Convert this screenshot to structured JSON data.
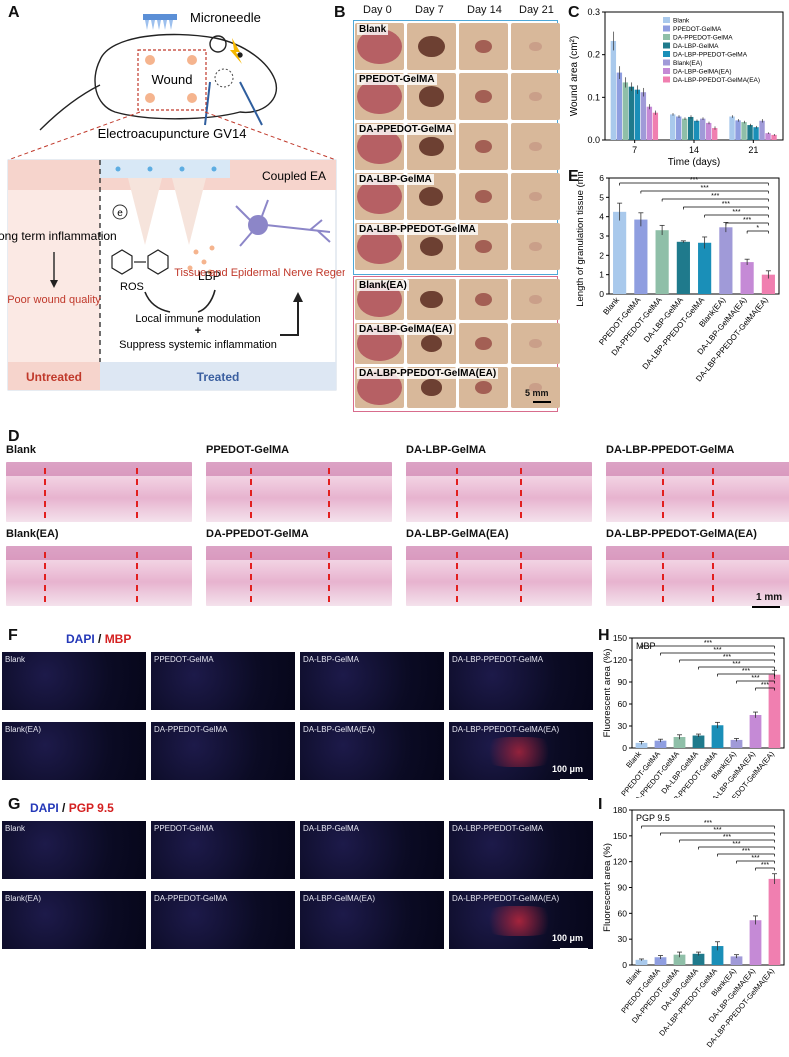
{
  "panels": {
    "a": "A",
    "b": "B",
    "c": "C",
    "d": "D",
    "e": "E",
    "f": "F",
    "g": "G",
    "h": "H",
    "i": "I"
  },
  "schematic": {
    "microneedle": "Microneedle",
    "wound": "Wound",
    "ea_title": "Electroacupuncture GV14",
    "coupled": "Coupled EA",
    "electron": "e",
    "ros": "ROS",
    "lbp": "LBP",
    "long_term": "Long term inflammation",
    "poor": "Poor wound quality",
    "local": "Local immune modulation",
    "plus": "+",
    "suppress": "Suppress systemic inflammation",
    "regen": "Tissue and Epidermal Nerve Regeneration",
    "untreated": "Untreated",
    "treated": "Treated",
    "colors": {
      "pink_band": "#f6d4cc",
      "blue_band": "#dde7f3",
      "red_text": "#c0392b",
      "blue_text": "#3a5fa0"
    }
  },
  "photos": {
    "days": [
      "Day 0",
      "Day 7",
      "Day 14",
      "Day 21"
    ],
    "groups_top": [
      "Blank",
      "PPEDOT-GelMA",
      "DA-PPEDOT-GelMA",
      "DA-LBP-GelMA",
      "DA-LBP-PPEDOT-GelMA"
    ],
    "groups_bottom": [
      "Blank(EA)",
      "DA-LBP-GelMA(EA)",
      "DA-LBP-PPEDOT-GelMA(EA)"
    ],
    "scale": "5 mm"
  },
  "histo": {
    "row1": [
      "Blank",
      "PPEDOT-GelMA",
      "DA-LBP-GelMA",
      "DA-LBP-PPEDOT-GelMA"
    ],
    "row2": [
      "Blank(EA)",
      "DA-PPEDOT-GelMA",
      "DA-LBP-GelMA(EA)",
      "DA-LBP-PPEDOT-GelMA(EA)"
    ],
    "scale": "1 mm"
  },
  "if_mbp": {
    "title_dapi": "DAPI",
    "title_sep": " / ",
    "title_marker": "MBP",
    "row1": [
      "Blank",
      "PPEDOT-GelMA",
      "DA-LBP-GelMA",
      "DA-LBP-PPEDOT-GelMA"
    ],
    "row2": [
      "Blank(EA)",
      "DA-PPEDOT-GelMA",
      "DA-LBP-GelMA(EA)",
      "DA-LBP-PPEDOT-GelMA(EA)"
    ],
    "scale": "100 μm"
  },
  "if_pgp": {
    "title_dapi": "DAPI",
    "title_sep": " / ",
    "title_marker": "PGP 9.5",
    "row1": [
      "Blank",
      "PPEDOT-GelMA",
      "DA-LBP-GelMA",
      "DA-LBP-PPEDOT-GelMA"
    ],
    "row2": [
      "Blank(EA)",
      "DA-PPEDOT-GelMA",
      "DA-LBP-GelMA(EA)",
      "DA-LBP-PPEDOT-GelMA(EA)"
    ],
    "scale": "100 μm"
  },
  "chart_data": [
    {
      "id": "C",
      "type": "bar",
      "xlabel": "Time (days)",
      "ylabel": "Wound area (cm²)",
      "categories": [
        "7",
        "14",
        "21"
      ],
      "ylim": [
        0,
        0.3
      ],
      "yticks": [
        "0.0",
        "0.1",
        "0.2",
        "0.3"
      ],
      "legend_placement": "top-right",
      "series": [
        {
          "name": "Blank",
          "color": "#a9c9ec",
          "values": [
            0.232,
            0.06,
            0.055
          ],
          "err": [
            0.022,
            0.003,
            0.003
          ]
        },
        {
          "name": "PPEDOT-GelMA",
          "color": "#8f9ee0",
          "values": [
            0.158,
            0.055,
            0.046
          ],
          "err": [
            0.015,
            0.003,
            0.003
          ]
        },
        {
          "name": "DA-PPEDOT-GelMA",
          "color": "#8fbfa8",
          "values": [
            0.135,
            0.05,
            0.042
          ],
          "err": [
            0.012,
            0.003,
            0.003
          ]
        },
        {
          "name": "DA-LBP-GelMA",
          "color": "#1f7a8c",
          "values": [
            0.125,
            0.054,
            0.035
          ],
          "err": [
            0.01,
            0.004,
            0.003
          ]
        },
        {
          "name": "DA-LBP-PPEDOT-GelMA",
          "color": "#1a8fb8",
          "values": [
            0.118,
            0.045,
            0.03
          ],
          "err": [
            0.01,
            0.003,
            0.003
          ]
        },
        {
          "name": "Blank(EA)",
          "color": "#a09ad8",
          "values": [
            0.112,
            0.05,
            0.045
          ],
          "err": [
            0.01,
            0.003,
            0.004
          ]
        },
        {
          "name": "DA-LBP-GelMA(EA)",
          "color": "#c58ad6",
          "values": [
            0.078,
            0.04,
            0.016
          ],
          "err": [
            0.006,
            0.003,
            0.002
          ]
        },
        {
          "name": "DA-LBP-PPEDOT-GelMA(EA)",
          "color": "#f07fb0",
          "values": [
            0.064,
            0.028,
            0.012
          ],
          "err": [
            0.005,
            0.004,
            0.002
          ]
        }
      ]
    },
    {
      "id": "E",
      "type": "bar",
      "ylabel": "Length of granulation tissue (mm)",
      "categories": [
        "Blank",
        "PPEDOT-GelMA",
        "DA-PPEDOT-GelMA",
        "DA-LBP-GelMA",
        "DA-LBP-PPEDOT-GelMA",
        "Blank(EA)",
        "DA-LBP-GelMA(EA)",
        "DA-LBP-PPEDOT-GelMA(EA)"
      ],
      "values": [
        4.25,
        3.85,
        3.3,
        2.7,
        2.65,
        3.45,
        1.65,
        1.0
      ],
      "err": [
        0.45,
        0.35,
        0.25,
        0.05,
        0.3,
        0.25,
        0.15,
        0.2
      ],
      "colors": [
        "#a9c9ec",
        "#8f9ee0",
        "#8fbfa8",
        "#1f7a8c",
        "#1a8fb8",
        "#a09ad8",
        "#c58ad6",
        "#f07fb0"
      ],
      "ylim": [
        0,
        6
      ],
      "yticks": [
        "0",
        "1",
        "2",
        "3",
        "4",
        "5",
        "6"
      ],
      "significance": [
        "***",
        "***",
        "***",
        "***",
        "***",
        "***",
        "*"
      ]
    },
    {
      "id": "H",
      "type": "bar",
      "ylabel": "Fluorescent area (%)",
      "annotation": "MBP",
      "categories": [
        "Blank",
        "PPEDOT-GelMA",
        "DA-PPEDOT-GelMA",
        "DA-LBP-GelMA",
        "DA-LBP-PPEDOT-GelMA",
        "Blank(EA)",
        "DA-LBP-GelMA(EA)",
        "DA-LBP-PPEDOT-GelMA(EA)"
      ],
      "values": [
        7,
        10,
        15,
        17,
        31,
        11,
        45,
        100
      ],
      "err": [
        2,
        2,
        3,
        2,
        4,
        2,
        4,
        6
      ],
      "colors": [
        "#a9c9ec",
        "#8f9ee0",
        "#8fbfa8",
        "#1f7a8c",
        "#1a8fb8",
        "#a09ad8",
        "#c58ad6",
        "#f07fb0"
      ],
      "ylim": [
        0,
        150
      ],
      "yticks": [
        "0",
        "30",
        "60",
        "90",
        "120",
        "150"
      ],
      "significance": [
        "***",
        "***",
        "***",
        "***",
        "***",
        "***",
        "***"
      ]
    },
    {
      "id": "I",
      "type": "bar",
      "ylabel": "Fluorescent area (%)",
      "annotation": "PGP 9.5",
      "categories": [
        "Blank",
        "PPEDOT-GelMA",
        "DA-PPEDOT-GelMA",
        "DA-LBP-GelMA",
        "DA-LBP-PPEDOT-GelMA",
        "Blank(EA)",
        "DA-LBP-GelMA(EA)",
        "DA-LBP-PPEDOT-GelMA(EA)"
      ],
      "values": [
        6,
        9,
        12,
        13,
        22,
        10,
        52,
        100
      ],
      "err": [
        1,
        2,
        3,
        2,
        5,
        2,
        5,
        6
      ],
      "colors": [
        "#a9c9ec",
        "#8f9ee0",
        "#8fbfa8",
        "#1f7a8c",
        "#1a8fb8",
        "#a09ad8",
        "#c58ad6",
        "#f07fb0"
      ],
      "ylim": [
        0,
        180
      ],
      "yticks": [
        "0",
        "30",
        "60",
        "90",
        "120",
        "150",
        "180"
      ],
      "significance": [
        "***",
        "***",
        "***",
        "***",
        "***",
        "***",
        "***"
      ]
    }
  ]
}
